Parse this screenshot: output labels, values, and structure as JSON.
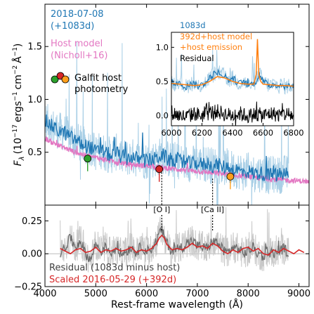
{
  "colors": {
    "spec_raw": "#a9cfe6",
    "spec_binned": "#1f77b4",
    "host_model": "#e377c2",
    "orange": "#ff7f0e",
    "resid_raw": "#c8c8c8",
    "resid_binned": "#6d6d6d",
    "scaled": "#d62728",
    "green": "#2ca02c",
    "red_phot": "#d62728",
    "orange_phot": "#ff9f1c"
  },
  "chart_data": [
    {
      "type": "line",
      "panel": "top",
      "ylabel_parts": {
        "F": "F",
        "lambda": "λ",
        "open": "(10",
        "exp1": "−17",
        "unit1": "ergs",
        "exp2": "−1",
        "unit2": "cm",
        "exp3": "−2",
        "unit3": "Å",
        "exp4": "−1",
        "close": ")"
      },
      "xlim": [
        4000,
        9200
      ],
      "ylim": [
        0.0,
        1.9
      ],
      "yticks": [
        "0.5",
        "1.0",
        "1.5"
      ],
      "ytick_values": [
        0.5,
        1.0,
        1.5
      ],
      "legend": {
        "line1": "2018-07-08",
        "line2": "(+1083d)",
        "line3": "Host model",
        "line4": "(Nicholl+16)",
        "line5": "Galfit host",
        "line6": "photometry"
      },
      "series": [
        {
          "key": "spectrum",
          "x": [
            3780,
            3850,
            3900,
            3950,
            4000,
            4100,
            4200,
            4300,
            4400,
            4500,
            4600,
            4700,
            4800,
            4900,
            5000,
            5100,
            5200,
            5300,
            5400,
            5500,
            5600,
            5700,
            5800,
            5900,
            6000,
            6100,
            6200,
            6300,
            6400,
            6500,
            6600,
            6700,
            6800,
            6900,
            7000,
            7100,
            7200,
            7300,
            7400,
            7500,
            7600,
            7700,
            7800,
            7900,
            8000,
            8100,
            8200,
            8300,
            8400,
            8500,
            8600,
            8700,
            8800
          ],
          "y": [
            0.85,
            0.98,
            0.9,
            0.86,
            0.8,
            0.76,
            0.72,
            0.7,
            0.68,
            0.64,
            0.62,
            0.58,
            0.56,
            0.55,
            0.5,
            0.52,
            0.49,
            0.47,
            0.5,
            0.46,
            0.44,
            0.46,
            0.44,
            0.43,
            0.42,
            0.43,
            0.44,
            0.48,
            0.44,
            0.42,
            0.43,
            0.4,
            0.4,
            0.39,
            0.4,
            0.38,
            0.4,
            0.37,
            0.38,
            0.36,
            0.36,
            0.34,
            0.33,
            0.31,
            0.32,
            0.3,
            0.3,
            0.3,
            0.28,
            0.29,
            0.28,
            0.3,
            0.29
          ]
        },
        {
          "key": "host_model",
          "x": [
            4000,
            4200,
            4400,
            4600,
            4800,
            5000,
            5200,
            5400,
            5600,
            5800,
            6000,
            6200,
            6400,
            6600,
            6800,
            7000,
            7200,
            7400,
            7600,
            7800,
            8000,
            8200,
            8400,
            8600,
            8800,
            9000,
            9200
          ],
          "y": [
            0.63,
            0.58,
            0.54,
            0.5,
            0.47,
            0.45,
            0.43,
            0.41,
            0.39,
            0.38,
            0.37,
            0.36,
            0.35,
            0.34,
            0.33,
            0.32,
            0.31,
            0.3,
            0.29,
            0.28,
            0.27,
            0.26,
            0.25,
            0.24,
            0.235,
            0.23,
            0.22
          ]
        }
      ],
      "photometry": [
        {
          "key": "green",
          "x": 4840,
          "y": 0.44
        },
        {
          "key": "red",
          "x": 6250,
          "y": 0.34
        },
        {
          "key": "orange",
          "x": 7650,
          "y": 0.27
        }
      ],
      "line_markers": [
        {
          "label": "[O I]",
          "x": 6300
        },
        {
          "label": "[Ca II]",
          "x": 7300
        }
      ]
    },
    {
      "type": "line",
      "panel": "inset",
      "xlim": [
        6000,
        6800
      ],
      "ylim": [
        -0.15,
        1.22
      ],
      "xticks": [
        "6000",
        "6200",
        "6400",
        "6600",
        "6800"
      ],
      "xtick_values": [
        6000,
        6200,
        6400,
        6600,
        6800
      ],
      "yticks": [
        "0.0",
        "0.5",
        "1.0"
      ],
      "ytick_values": [
        0.0,
        0.5,
        1.0
      ],
      "legend": {
        "line1": "1083d",
        "line2": "392d+host model",
        "line3": "+host emission",
        "line4": "Residual"
      },
      "series": [
        {
          "key": "spectrum_1083d",
          "x": [
            6000,
            6025,
            6050,
            6075,
            6100,
            6125,
            6150,
            6175,
            6200,
            6225,
            6250,
            6275,
            6300,
            6325,
            6350,
            6375,
            6400,
            6425,
            6450,
            6475,
            6500,
            6525,
            6550,
            6575,
            6600,
            6625,
            6650,
            6675,
            6700,
            6725,
            6750,
            6775,
            6800
          ],
          "y": [
            0.5,
            0.46,
            0.52,
            0.44,
            0.42,
            0.48,
            0.46,
            0.43,
            0.45,
            0.49,
            0.55,
            0.6,
            0.64,
            0.6,
            0.58,
            0.52,
            0.55,
            0.5,
            0.47,
            0.5,
            0.44,
            0.46,
            0.48,
            0.62,
            0.5,
            0.46,
            0.44,
            0.47,
            0.43,
            0.45,
            0.42,
            0.44,
            0.43
          ]
        },
        {
          "key": "model_392d",
          "x": [
            6000,
            6050,
            6100,
            6150,
            6200,
            6250,
            6300,
            6350,
            6400,
            6450,
            6500,
            6540,
            6555,
            6563,
            6572,
            6585,
            6600,
            6650,
            6700,
            6750,
            6800
          ],
          "y": [
            0.47,
            0.46,
            0.45,
            0.44,
            0.45,
            0.5,
            0.57,
            0.55,
            0.5,
            0.47,
            0.46,
            0.46,
            0.6,
            1.12,
            0.6,
            0.5,
            0.46,
            0.45,
            0.44,
            0.44,
            0.43
          ]
        },
        {
          "key": "residual",
          "x": [
            6000,
            6050,
            6100,
            6150,
            6200,
            6250,
            6300,
            6350,
            6400,
            6450,
            6500,
            6550,
            6600,
            6650,
            6700,
            6750,
            6800
          ],
          "y": [
            0.05,
            0.0,
            -0.02,
            0.03,
            0.0,
            0.04,
            0.06,
            0.02,
            0.0,
            0.03,
            -0.01,
            0.02,
            0.0,
            0.03,
            0.01,
            0.02,
            0.0
          ]
        }
      ]
    },
    {
      "type": "line",
      "panel": "bottom",
      "xlabel": "Rest-frame wavelength (Å)",
      "xlim": [
        4000,
        9200
      ],
      "ylim": [
        -0.25,
        0.37
      ],
      "xticks": [
        "4000",
        "5000",
        "6000",
        "7000",
        "8000",
        "9000"
      ],
      "xtick_values": [
        4000,
        5000,
        6000,
        7000,
        8000,
        9000
      ],
      "yticks": [
        "−0.25",
        "0.00",
        "0.25"
      ],
      "ytick_values": [
        -0.25,
        0.0,
        0.25
      ],
      "legend": {
        "line1": "Residual (1083d minus host)",
        "line2": "Scaled 2016-05-29 (+392d)"
      },
      "series": [
        {
          "key": "residual",
          "x": [
            4300,
            4400,
            4500,
            4600,
            4700,
            4800,
            4900,
            5000,
            5100,
            5200,
            5300,
            5400,
            5500,
            5600,
            5700,
            5800,
            5900,
            6000,
            6100,
            6200,
            6250,
            6300,
            6350,
            6400,
            6500,
            6600,
            6700,
            6800,
            6900,
            7000,
            7100,
            7200,
            7300,
            7400,
            7500,
            7600,
            7700,
            7800,
            7900,
            8000,
            8100,
            8200,
            8300,
            8400,
            8500,
            8600,
            8700,
            8800
          ],
          "y": [
            0.0,
            0.05,
            0.12,
            0.05,
            0.1,
            0.0,
            -0.05,
            0.08,
            0.02,
            0.05,
            0.01,
            0.04,
            0.0,
            0.02,
            0.05,
            0.01,
            0.06,
            0.02,
            0.04,
            0.1,
            0.16,
            0.18,
            0.13,
            0.08,
            0.02,
            0.04,
            0.05,
            0.08,
            0.1,
            0.06,
            0.05,
            0.04,
            0.1,
            0.08,
            0.03,
            0.01,
            0.05,
            0.04,
            0.0,
            0.02,
            0.05,
            0.0,
            -0.02,
            0.03,
            0.0,
            0.02,
            0.04,
            0.0
          ]
        },
        {
          "key": "scaled_392d",
          "x": [
            4300,
            4400,
            4500,
            4600,
            4700,
            4800,
            4900,
            5000,
            5100,
            5200,
            5300,
            5400,
            5500,
            5600,
            5700,
            5800,
            5900,
            6000,
            6100,
            6200,
            6250,
            6300,
            6350,
            6400,
            6500,
            6600,
            6700,
            6800,
            6900,
            7000,
            7100,
            7200,
            7300,
            7400,
            7500,
            7600,
            7700,
            7800,
            7900,
            8000,
            8100,
            8200,
            8300,
            8400,
            8500,
            8600,
            8700,
            8800,
            8900,
            9000,
            9100
          ],
          "y": [
            0.04,
            0.02,
            0.0,
            0.03,
            0.04,
            0.01,
            0.02,
            0.05,
            0.01,
            0.03,
            0.02,
            0.04,
            0.02,
            0.03,
            0.05,
            0.01,
            0.03,
            0.02,
            0.04,
            0.08,
            0.12,
            0.14,
            0.12,
            0.07,
            0.03,
            0.04,
            0.03,
            0.05,
            0.08,
            0.05,
            0.06,
            0.04,
            0.08,
            0.06,
            0.02,
            0.0,
            0.03,
            0.01,
            0.04,
            0.05,
            0.02,
            0.04,
            0.0,
            -0.01,
            0.03,
            0.01,
            0.04,
            0.02,
            0.0,
            0.03,
            0.01
          ]
        }
      ]
    }
  ]
}
